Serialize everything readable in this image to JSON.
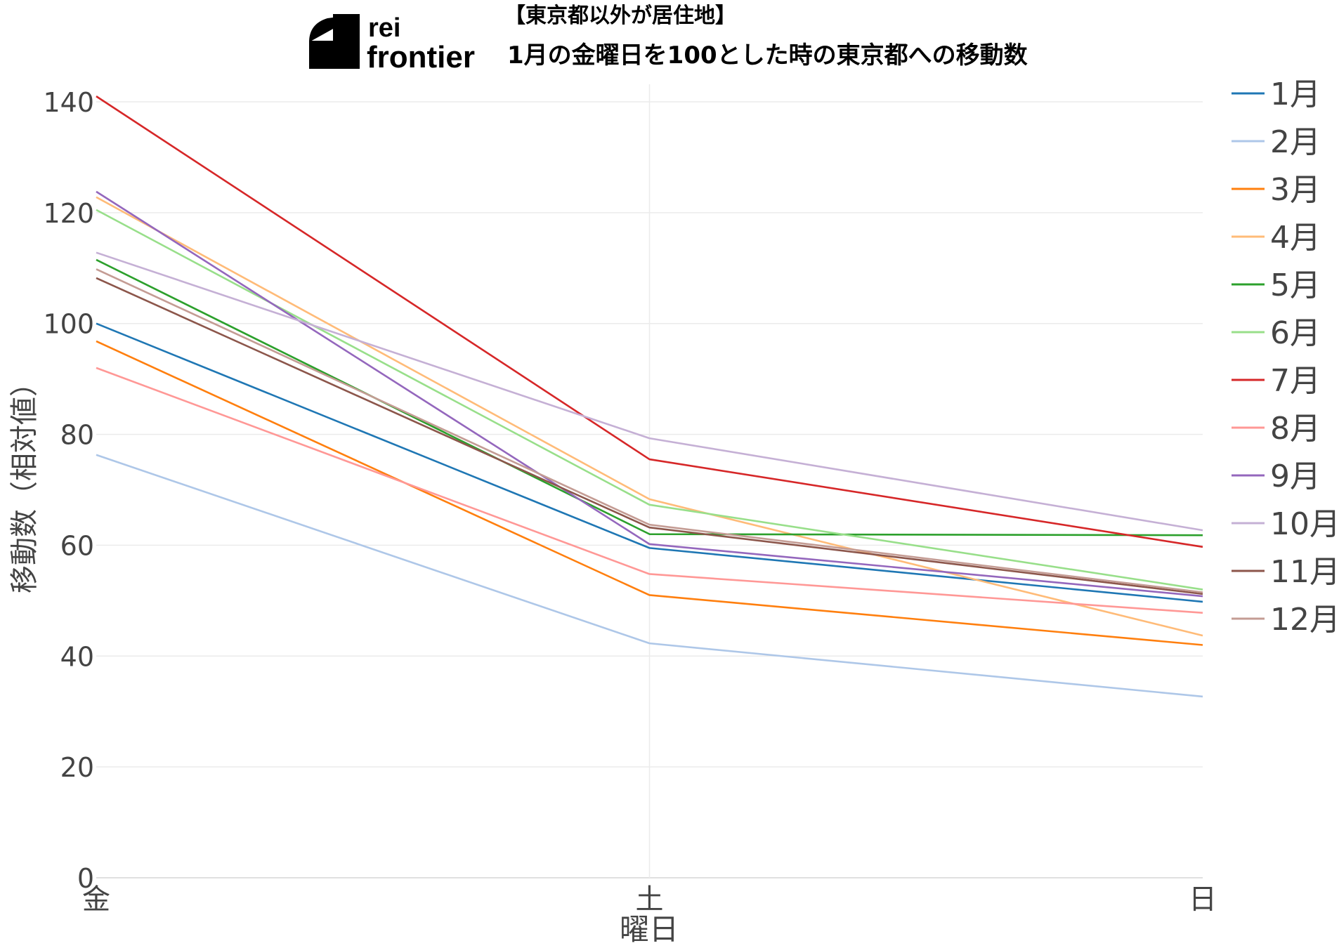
{
  "logo": {
    "line1": "rei",
    "line2": "frontier"
  },
  "colors": {
    "grid": "#ebebeb",
    "axis": "#d6d6d6",
    "text": "#444444",
    "series": [
      "#1f77b4",
      "#aec7e8",
      "#ff7f0e",
      "#ffbb78",
      "#2ca02c",
      "#98df8a",
      "#d62728",
      "#ff9896",
      "#9467bd",
      "#c5b0d5",
      "#8c564b",
      "#c49c94"
    ]
  },
  "chart_data": {
    "type": "line",
    "title": "【東京都以外が居住地】",
    "subtitle": "1月の金曜日を100とした時の東京都への移動数",
    "xlabel": "曜日",
    "ylabel": "移動数（相対値）",
    "categories": [
      "金",
      "土",
      "日"
    ],
    "ylim": [
      0,
      140
    ],
    "yticks": [
      0,
      20,
      40,
      60,
      80,
      100,
      120,
      140
    ],
    "grid": true,
    "legend": "right",
    "series": [
      {
        "name": "1月",
        "values": [
          100,
          59.5,
          49.8
        ]
      },
      {
        "name": "2月",
        "values": [
          76.3,
          42.3,
          32.7
        ]
      },
      {
        "name": "3月",
        "values": [
          96.8,
          51.0,
          42.0
        ]
      },
      {
        "name": "4月",
        "values": [
          122.8,
          68.3,
          43.7
        ]
      },
      {
        "name": "5月",
        "values": [
          111.5,
          62.0,
          61.8
        ]
      },
      {
        "name": "6月",
        "values": [
          120.5,
          67.3,
          52.0
        ]
      },
      {
        "name": "7月",
        "values": [
          141.0,
          75.5,
          59.7
        ]
      },
      {
        "name": "8月",
        "values": [
          92.0,
          54.8,
          47.8
        ]
      },
      {
        "name": "9月",
        "values": [
          123.8,
          60.2,
          50.8
        ]
      },
      {
        "name": "10月",
        "values": [
          112.8,
          79.3,
          62.7
        ]
      },
      {
        "name": "11月",
        "values": [
          108.2,
          63.2,
          51.2
        ]
      },
      {
        "name": "12月",
        "values": [
          109.8,
          63.7,
          51.5
        ]
      }
    ]
  }
}
